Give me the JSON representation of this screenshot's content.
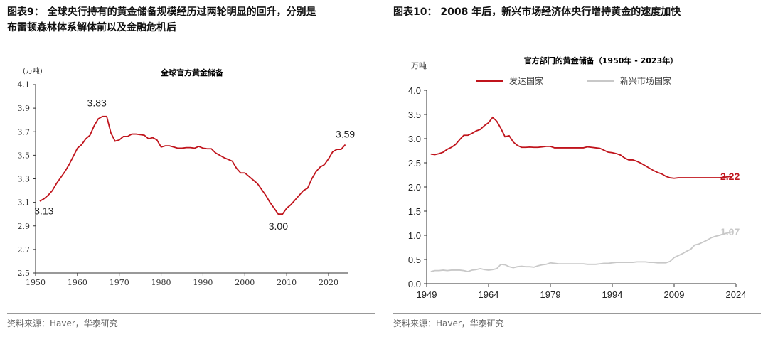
{
  "left": {
    "header": [
      "图表9：  全球央行持有的黄金储备规模经历过两轮明显的回升，分别是",
      "布雷顿森林体系解体前以及金融危机后"
    ],
    "source": "资料来源：Haver，华泰研究"
  },
  "right": {
    "header": "图表10：  2008 年后，新兴市场经济体央行增持黄金的速度加快",
    "source": "资料来源：Haver，华泰研究"
  },
  "chart_data": [
    {
      "type": "line",
      "title": "全球官方黄金储备",
      "ylabel": "(万吨)",
      "ylim": [
        2.5,
        4.1
      ],
      "yticks": [
        "4.1",
        "3.9",
        "3.7",
        "3.5",
        "3.3",
        "3.1",
        "2.9",
        "2.7",
        "2.5"
      ],
      "xticks": [
        "1950",
        "1960",
        "1970",
        "1980",
        "1990",
        "2000",
        "2010",
        "2020"
      ],
      "grid": false,
      "color": "#c0141c",
      "annotations": [
        {
          "x": 1952,
          "y": 3.13,
          "text": "3.13"
        },
        {
          "x": 1966,
          "y": 3.83,
          "text": "3.83"
        },
        {
          "x": 2008,
          "y": 3.0,
          "text": "3.00"
        },
        {
          "x": 2024,
          "y": 3.59,
          "text": "3.59"
        }
      ],
      "x": [
        1951,
        1952,
        1953,
        1954,
        1955,
        1956,
        1957,
        1958,
        1959,
        1960,
        1961,
        1962,
        1963,
        1964,
        1965,
        1966,
        1967,
        1968,
        1969,
        1970,
        1971,
        1972,
        1973,
        1974,
        1975,
        1976,
        1977,
        1978,
        1979,
        1980,
        1981,
        1982,
        1983,
        1984,
        1985,
        1986,
        1987,
        1988,
        1989,
        1990,
        1991,
        1992,
        1993,
        1994,
        1995,
        1996,
        1997,
        1998,
        1999,
        2000,
        2001,
        2002,
        2003,
        2004,
        2005,
        2006,
        2007,
        2008,
        2009,
        2010,
        2011,
        2012,
        2013,
        2014,
        2015,
        2016,
        2017,
        2018,
        2019,
        2020,
        2021,
        2022,
        2023,
        2024
      ],
      "values": [
        3.11,
        3.13,
        3.16,
        3.2,
        3.26,
        3.31,
        3.36,
        3.42,
        3.49,
        3.56,
        3.59,
        3.64,
        3.67,
        3.75,
        3.81,
        3.83,
        3.83,
        3.69,
        3.62,
        3.63,
        3.66,
        3.66,
        3.68,
        3.68,
        3.675,
        3.67,
        3.64,
        3.65,
        3.63,
        3.57,
        3.58,
        3.58,
        3.57,
        3.56,
        3.56,
        3.565,
        3.565,
        3.56,
        3.575,
        3.56,
        3.555,
        3.555,
        3.52,
        3.5,
        3.48,
        3.465,
        3.45,
        3.39,
        3.35,
        3.35,
        3.32,
        3.29,
        3.26,
        3.21,
        3.16,
        3.1,
        3.05,
        3.0,
        3.0,
        3.05,
        3.08,
        3.12,
        3.16,
        3.2,
        3.22,
        3.3,
        3.36,
        3.4,
        3.42,
        3.47,
        3.53,
        3.55,
        3.55,
        3.59
      ]
    },
    {
      "type": "line",
      "title": "官方部门的黄金储备（1950年 - 2023年）",
      "ylabel": "万吨",
      "ylim": [
        0,
        4.0
      ],
      "yticks": [
        "4.0",
        "3.5",
        "3.0",
        "2.5",
        "2.0",
        "1.5",
        "1.0",
        "0.5",
        "0.0"
      ],
      "xticks": [
        "1949",
        "1964",
        "1979",
        "1994",
        "2009",
        "2024"
      ],
      "grid": false,
      "legend": "top",
      "x": [
        1950,
        1951,
        1952,
        1953,
        1954,
        1955,
        1956,
        1957,
        1958,
        1959,
        1960,
        1961,
        1962,
        1963,
        1964,
        1965,
        1966,
        1967,
        1968,
        1969,
        1970,
        1971,
        1972,
        1973,
        1974,
        1975,
        1976,
        1977,
        1978,
        1979,
        1980,
        1981,
        1982,
        1983,
        1984,
        1985,
        1986,
        1987,
        1988,
        1989,
        1990,
        1991,
        1992,
        1993,
        1994,
        1995,
        1996,
        1997,
        1998,
        1999,
        2000,
        2001,
        2002,
        2003,
        2004,
        2005,
        2006,
        2007,
        2008,
        2009,
        2010,
        2011,
        2012,
        2013,
        2014,
        2015,
        2016,
        2017,
        2018,
        2019,
        2020,
        2021,
        2022,
        2023
      ],
      "series": [
        {
          "name": "发达国家",
          "color": "#c0141c",
          "end_label": "2.22",
          "values": [
            2.68,
            2.67,
            2.69,
            2.72,
            2.78,
            2.82,
            2.88,
            2.98,
            3.07,
            3.07,
            3.11,
            3.16,
            3.19,
            3.27,
            3.33,
            3.44,
            3.36,
            3.21,
            3.04,
            3.06,
            2.93,
            2.86,
            2.82,
            2.82,
            2.825,
            2.82,
            2.82,
            2.83,
            2.84,
            2.84,
            2.81,
            2.81,
            2.81,
            2.81,
            2.81,
            2.81,
            2.81,
            2.81,
            2.83,
            2.82,
            2.81,
            2.8,
            2.76,
            2.72,
            2.71,
            2.69,
            2.66,
            2.6,
            2.56,
            2.56,
            2.53,
            2.49,
            2.44,
            2.39,
            2.34,
            2.3,
            2.27,
            2.22,
            2.19,
            2.18,
            2.19,
            2.19,
            2.19,
            2.19,
            2.19,
            2.19,
            2.19,
            2.19,
            2.19,
            2.19,
            2.19,
            2.2,
            2.21,
            2.22
          ]
        },
        {
          "name": "新兴市场国家",
          "color": "#c8c8c8",
          "end_label": "1.07",
          "values": [
            0.25,
            0.27,
            0.27,
            0.28,
            0.27,
            0.28,
            0.28,
            0.28,
            0.27,
            0.25,
            0.28,
            0.29,
            0.31,
            0.29,
            0.28,
            0.29,
            0.31,
            0.4,
            0.39,
            0.35,
            0.33,
            0.35,
            0.36,
            0.35,
            0.35,
            0.34,
            0.37,
            0.39,
            0.4,
            0.43,
            0.42,
            0.41,
            0.41,
            0.41,
            0.41,
            0.41,
            0.41,
            0.41,
            0.4,
            0.4,
            0.4,
            0.41,
            0.42,
            0.42,
            0.43,
            0.44,
            0.44,
            0.44,
            0.44,
            0.44,
            0.45,
            0.45,
            0.45,
            0.44,
            0.44,
            0.43,
            0.43,
            0.43,
            0.46,
            0.54,
            0.58,
            0.62,
            0.67,
            0.71,
            0.8,
            0.82,
            0.86,
            0.9,
            0.95,
            0.98,
            1.0,
            1.03,
            1.05,
            1.07
          ]
        }
      ]
    }
  ]
}
